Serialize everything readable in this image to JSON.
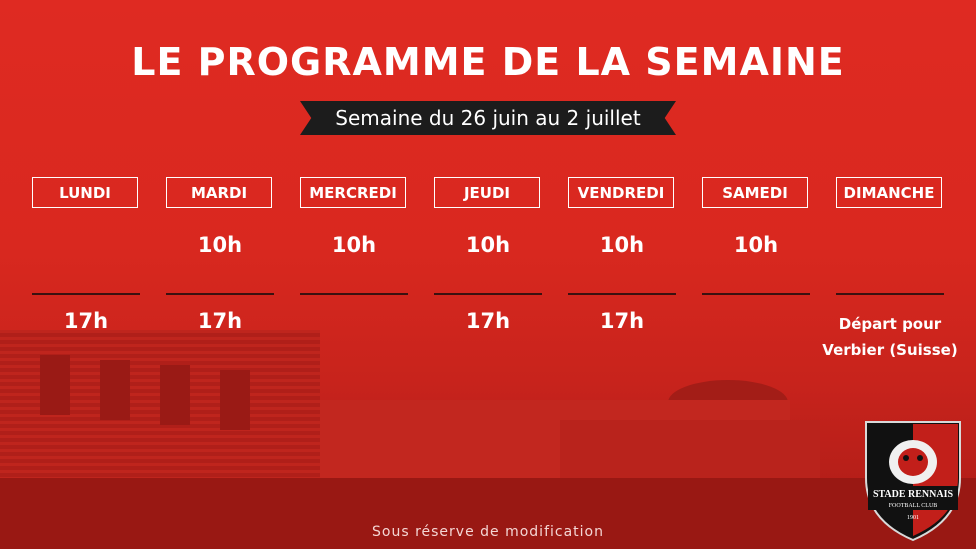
{
  "title": "LE PROGRAMME DE LA SEMAINE",
  "week": "Semaine du 26 juin au 2 juillet",
  "days": [
    {
      "label": "LUNDI",
      "morning": "",
      "afternoon": "17h"
    },
    {
      "label": "MARDI",
      "morning": "10h",
      "afternoon": "17h"
    },
    {
      "label": "MERCREDI",
      "morning": "10h",
      "afternoon": ""
    },
    {
      "label": "JEUDI",
      "morning": "10h",
      "afternoon": "17h"
    },
    {
      "label": "VENDREDI",
      "morning": "10h",
      "afternoon": "17h"
    },
    {
      "label": "SAMEDI",
      "morning": "10h",
      "afternoon": ""
    },
    {
      "label": "DIMANCHE",
      "morning": "",
      "afternoon": "Départ pour Verbier (Suisse)"
    }
  ],
  "footer": "Sous réserve de modification",
  "crest": {
    "name": "STADE RENNAIS",
    "sub": "FOOTBALL CLUB",
    "year": "1901"
  },
  "colors": {
    "background": "#d42a22",
    "banner": "#1c1c1c",
    "text": "#ffffff"
  }
}
